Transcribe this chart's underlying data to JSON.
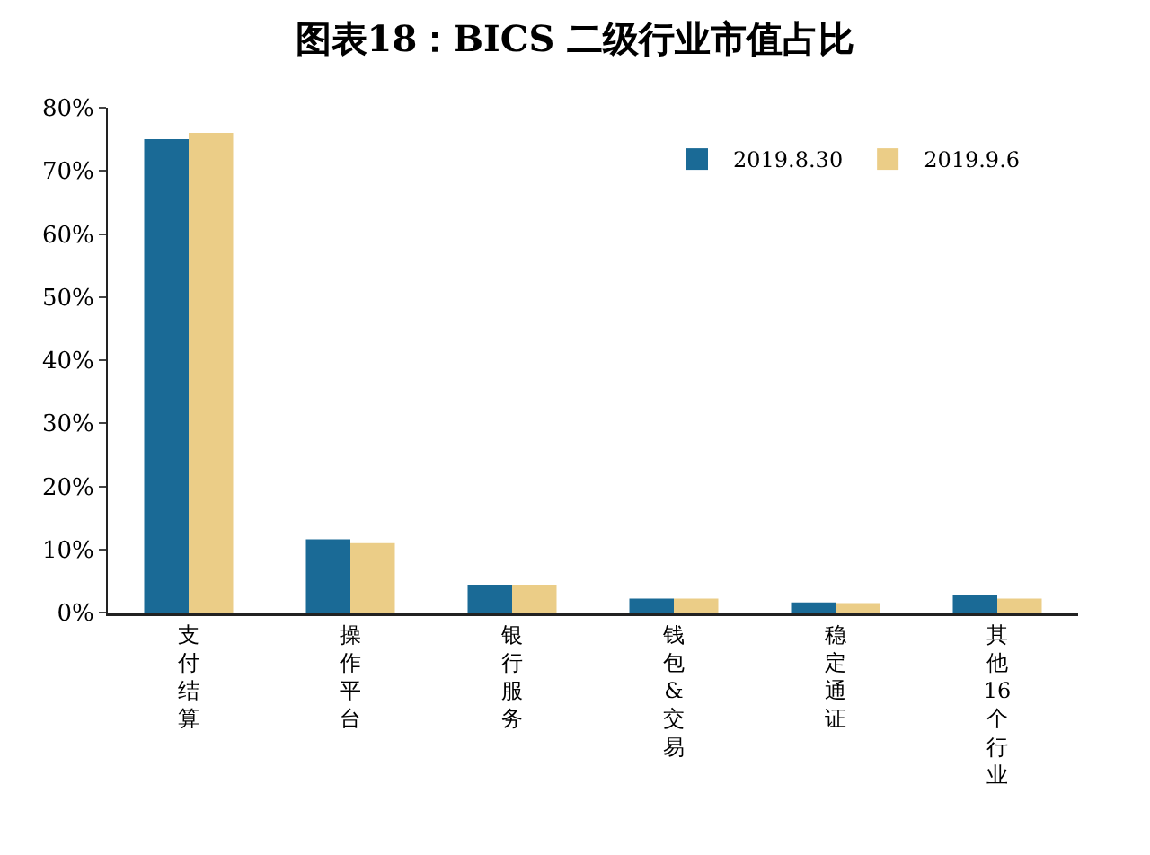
{
  "chart_data": {
    "type": "bar",
    "title": "图表18：BICS 二级行业市值占比",
    "categories": [
      "支付结算",
      "操作平台",
      "银行服务",
      "钱包&交易",
      "稳定通证",
      "其他16个行业"
    ],
    "series": [
      {
        "name": "2019.8.30",
        "color": "#1a6a96",
        "values": [
          75,
          11.6,
          4.4,
          2.2,
          1.6,
          2.8
        ]
      },
      {
        "name": "2019.9.6",
        "color": "#ebcd87",
        "values": [
          76,
          11.0,
          4.4,
          2.2,
          1.5,
          2.2
        ]
      }
    ],
    "ylim": [
      0,
      80
    ],
    "yticks": [
      {
        "value": 0,
        "label": "0%"
      },
      {
        "value": 10,
        "label": "10%"
      },
      {
        "value": 20,
        "label": "20%"
      },
      {
        "value": 30,
        "label": "30%"
      },
      {
        "value": 40,
        "label": "40%"
      },
      {
        "value": 50,
        "label": "50%"
      },
      {
        "value": 60,
        "label": "60%"
      },
      {
        "value": 70,
        "label": "70%"
      },
      {
        "value": 80,
        "label": "80%"
      }
    ],
    "legend": "top right"
  }
}
